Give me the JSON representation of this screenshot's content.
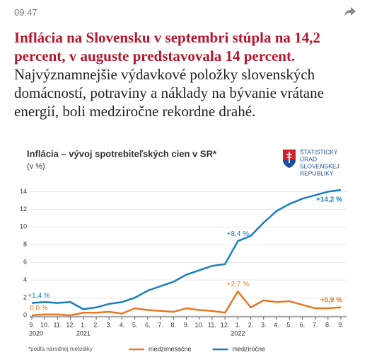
{
  "header": {
    "time": "09:47"
  },
  "article": {
    "headline": "Inflácia na Slovensku v septembri stúpla na 14,2 percent, v auguste predstavovala 14 percent.",
    "body": "Najvýznamnejšie výdavkové položky slovenských domácností, potraviny a náklady na bývanie vrátane energií, boli medziročne rekordne drahé."
  },
  "chart_data": {
    "type": "line",
    "title": "Inflácia – vývoj spotrebiteľských cien v SR*",
    "subtitle": "(v %)",
    "logo_text": [
      "ŠTATISTICKÝ",
      "ÚRAD",
      "SLOVENSKEJ",
      "REPUBLIKY"
    ],
    "footnote": "*podľa národnej metodiky",
    "categories": [
      "9.",
      "10.",
      "11.",
      "12.",
      "1.",
      "2.",
      "3.",
      "4.",
      "5.",
      "6.",
      "7.",
      "8.",
      "9.",
      "10.",
      "11.",
      "12.",
      "1.",
      "2.",
      "3.",
      "4.",
      "5.",
      "6.",
      "7.",
      "8.",
      "9."
    ],
    "years": [
      "2020",
      "2021",
      "2022"
    ],
    "series": [
      {
        "name": "medzimesačne",
        "color": "#e87722",
        "values": [
          0.0,
          0.1,
          0.1,
          0.0,
          0.3,
          0.3,
          0.4,
          0.2,
          0.8,
          0.6,
          0.5,
          0.4,
          0.8,
          0.6,
          0.5,
          0.3,
          2.7,
          0.9,
          1.7,
          1.5,
          1.6,
          1.2,
          0.8,
          0.8,
          0.9
        ],
        "value_labels": [
          "0,0 %",
          null,
          null,
          null,
          null,
          null,
          null,
          null,
          null,
          null,
          null,
          null,
          null,
          null,
          null,
          null,
          "+2,7 %",
          null,
          null,
          null,
          null,
          null,
          null,
          null,
          "+0,9 %"
        ]
      },
      {
        "name": "medziročne",
        "color": "#1a7dc0",
        "values": [
          1.4,
          1.5,
          1.4,
          1.5,
          0.7,
          0.9,
          1.3,
          1.5,
          2.0,
          2.8,
          3.3,
          3.8,
          4.6,
          5.1,
          5.6,
          5.8,
          8.4,
          9.0,
          10.5,
          11.8,
          12.6,
          13.2,
          13.6,
          14.0,
          14.2
        ],
        "value_labels": [
          "+1,4 %",
          null,
          null,
          null,
          null,
          null,
          null,
          null,
          null,
          null,
          null,
          null,
          null,
          null,
          null,
          null,
          "+8,4 %",
          null,
          null,
          null,
          null,
          null,
          null,
          null,
          "+14,2 %"
        ]
      }
    ],
    "ylim": [
      0,
      15
    ],
    "yticks": [
      0,
      2,
      4,
      6,
      8,
      10,
      12,
      14
    ],
    "grid": true
  }
}
